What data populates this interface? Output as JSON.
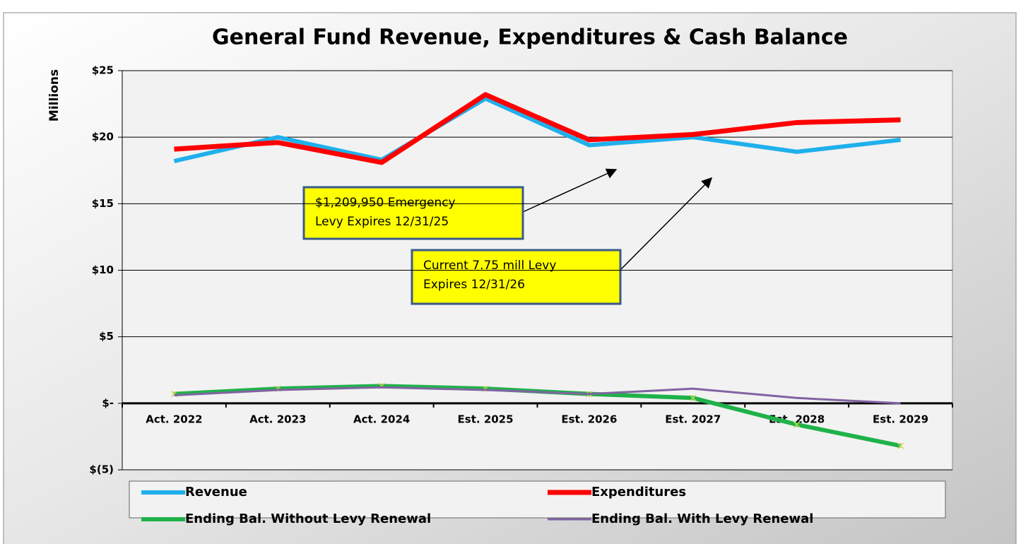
{
  "chart_data": {
    "type": "line",
    "title": "General Fund Revenue, Expenditures & Cash Balance",
    "y_label": "Millions",
    "categories": [
      "Act. 2022",
      "Act. 2023",
      "Act. 2024",
      "Est. 2025",
      "Est. 2026",
      "Est. 2027",
      "Est. 2028",
      "Est. 2029"
    ],
    "series": [
      {
        "name": "Revenue",
        "color": "#1fb0ec",
        "width": 6,
        "values": [
          18.2,
          20.0,
          18.3,
          22.9,
          19.4,
          20.0,
          18.9,
          19.8
        ]
      },
      {
        "name": "Expenditures",
        "color": "#ff0000",
        "width": 7,
        "values": [
          19.1,
          19.6,
          18.1,
          23.2,
          19.8,
          20.2,
          21.1,
          21.3
        ]
      },
      {
        "name": "Ending Bal. Without Levy Renewal",
        "color": "#1fb24a",
        "width": 6,
        "marker": "x",
        "values": [
          0.7,
          1.1,
          1.3,
          1.1,
          0.7,
          0.4,
          -1.6,
          -3.2
        ]
      },
      {
        "name": "Ending Bal. With Levy Renewal",
        "color": "#8064a2",
        "width": 3,
        "values": [
          0.6,
          1.0,
          1.2,
          1.0,
          0.7,
          1.1,
          0.4,
          0.0
        ]
      }
    ],
    "ylim": [
      -5,
      25
    ],
    "yticks": [
      {
        "value": -5,
        "label": "$(5)"
      },
      {
        "value": 0,
        "label": "$-"
      },
      {
        "value": 5,
        "label": "$5"
      },
      {
        "value": 10,
        "label": "$10"
      },
      {
        "value": 15,
        "label": "$15"
      },
      {
        "value": 20,
        "label": "$20"
      },
      {
        "value": 25,
        "label": "$25"
      }
    ],
    "grid": true,
    "annotations": [
      {
        "lines": [
          "$1,209,950  Emergency",
          "Levy Expires 12/31/25"
        ]
      },
      {
        "lines": [
          "Current 7.75 mill Levy",
          "Expires 12/31/26"
        ]
      }
    ]
  }
}
